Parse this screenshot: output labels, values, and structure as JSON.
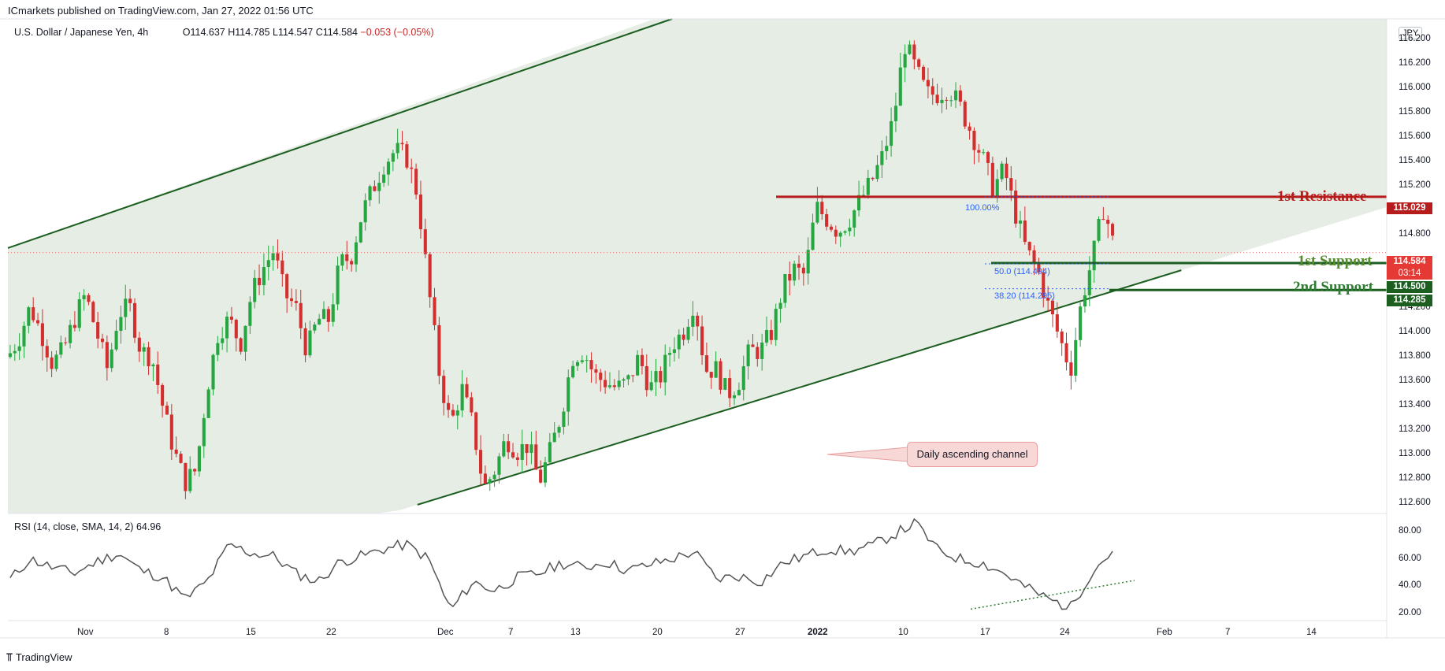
{
  "header": {
    "published_by": "ICmarkets published on TradingView.com, Jan 27, 2022 01:56 UTC"
  },
  "legend": {
    "symbol": "U.S. Dollar / Japanese Yen, 4h",
    "open": "O114.637",
    "high": "H114.785",
    "low": "L114.547",
    "close": "C114.584",
    "change": "−0.053 (−0.05%)"
  },
  "currency_badge": "JPY",
  "rsi_legend": {
    "label": "RSI (14, close, SMA, 14, 2)",
    "value": "64.96"
  },
  "price_axis_ticks": [
    "116.200",
    "116.000",
    "115.800",
    "115.600",
    "115.400",
    "115.200",
    "114.800",
    "114.200",
    "114.000",
    "113.800",
    "113.600",
    "113.400",
    "113.200",
    "113.000",
    "112.800",
    "112.600"
  ],
  "price_tags": {
    "resistance": "115.029",
    "last": "114.584",
    "countdown": "03:14",
    "support1": "114.500",
    "support2": "114.285"
  },
  "rsi_axis_ticks": [
    "80.00",
    "60.00",
    "40.00",
    "20.00"
  ],
  "time_axis_labels": [
    "Nov",
    "8",
    "15",
    "22",
    "Dec",
    "7",
    "13",
    "20",
    "27",
    "2022",
    "10",
    "17",
    "24",
    "Feb",
    "7",
    "14"
  ],
  "annotations": {
    "resistance_label": "1st Resistance",
    "support1_label": "1st Support",
    "support2_label": "2nd Support",
    "channel_callout": "Daily ascending channel",
    "fib_100": "100.00%",
    "fib_50": "50.0",
    "fib_50_val": "(114.494)",
    "fib_382": "38.20",
    "fib_382_val": "(114.295)"
  },
  "footer": {
    "brand": "TradingView"
  },
  "colors": {
    "up": "#26a641",
    "down": "#d32f2f",
    "channel_fill": "#e6ede4",
    "channel_line": "#1b5e20",
    "resistance": "#b71c1c",
    "support": "#1b5e20",
    "rsi_line": "#555555"
  },
  "chart_data": {
    "type": "candlestick",
    "symbol": "USDJPY",
    "interval": "4h",
    "ylim": [
      112.5,
      116.45
    ],
    "rsi_ylim": [
      15,
      88
    ],
    "key_levels": {
      "resistance_1": 115.029,
      "support_1": 114.5,
      "support_2": 114.285
    },
    "channel": {
      "upper": [
        {
          "x": 0.0,
          "y": 114.62
        },
        {
          "x": 0.6,
          "y": 116.5
        }
      ],
      "lower": [
        {
          "x": 0.37,
          "y": 112.57
        },
        {
          "x": 1.0,
          "y": 114.28
        }
      ]
    },
    "price_path": [
      [
        0.0,
        113.75
      ],
      [
        0.01,
        113.9
      ],
      [
        0.02,
        114.15
      ],
      [
        0.03,
        113.95
      ],
      [
        0.04,
        113.7
      ],
      [
        0.05,
        113.8
      ],
      [
        0.06,
        114.05
      ],
      [
        0.07,
        114.25
      ],
      [
        0.08,
        113.95
      ],
      [
        0.09,
        113.65
      ],
      [
        0.1,
        114.1
      ],
      [
        0.11,
        114.15
      ],
      [
        0.12,
        113.8
      ],
      [
        0.13,
        113.75
      ],
      [
        0.14,
        113.35
      ],
      [
        0.15,
        113.0
      ],
      [
        0.16,
        112.75
      ],
      [
        0.17,
        112.85
      ],
      [
        0.18,
        113.5
      ],
      [
        0.19,
        113.95
      ],
      [
        0.2,
        114.05
      ],
      [
        0.21,
        113.85
      ],
      [
        0.22,
        114.25
      ],
      [
        0.23,
        114.45
      ],
      [
        0.24,
        114.6
      ],
      [
        0.25,
        114.25
      ],
      [
        0.26,
        114.15
      ],
      [
        0.27,
        113.8
      ],
      [
        0.28,
        114.05
      ],
      [
        0.29,
        114.05
      ],
      [
        0.3,
        114.5
      ],
      [
        0.31,
        114.55
      ],
      [
        0.32,
        114.9
      ],
      [
        0.33,
        115.1
      ],
      [
        0.34,
        115.3
      ],
      [
        0.35,
        115.4
      ],
      [
        0.36,
        115.35
      ],
      [
        0.37,
        115.05
      ],
      [
        0.38,
        114.3
      ],
      [
        0.39,
        113.6
      ],
      [
        0.4,
        113.2
      ],
      [
        0.41,
        113.5
      ],
      [
        0.42,
        113.2
      ],
      [
        0.43,
        112.7
      ],
      [
        0.44,
        112.85
      ],
      [
        0.45,
        113.1
      ],
      [
        0.46,
        113.0
      ],
      [
        0.47,
        113.05
      ],
      [
        0.48,
        112.75
      ],
      [
        0.49,
        113.0
      ],
      [
        0.5,
        113.3
      ],
      [
        0.51,
        113.75
      ],
      [
        0.52,
        113.8
      ],
      [
        0.53,
        113.6
      ],
      [
        0.54,
        113.55
      ],
      [
        0.55,
        113.5
      ],
      [
        0.56,
        113.55
      ],
      [
        0.57,
        113.75
      ],
      [
        0.58,
        113.5
      ],
      [
        0.59,
        113.6
      ],
      [
        0.6,
        113.85
      ],
      [
        0.61,
        113.95
      ],
      [
        0.62,
        114.2
      ],
      [
        0.63,
        113.65
      ],
      [
        0.64,
        113.65
      ],
      [
        0.65,
        113.45
      ],
      [
        0.66,
        113.55
      ],
      [
        0.67,
        113.8
      ],
      [
        0.68,
        113.8
      ],
      [
        0.69,
        113.95
      ],
      [
        0.7,
        114.3
      ],
      [
        0.71,
        114.45
      ],
      [
        0.72,
        114.4
      ],
      [
        0.73,
        114.95
      ],
      [
        0.74,
        114.85
      ],
      [
        0.75,
        114.75
      ],
      [
        0.76,
        114.85
      ],
      [
        0.77,
        115.0
      ],
      [
        0.78,
        115.15
      ],
      [
        0.79,
        115.35
      ],
      [
        0.8,
        115.65
      ],
      [
        0.81,
        116.25
      ],
      [
        0.82,
        116.05
      ],
      [
        0.83,
        115.85
      ],
      [
        0.84,
        115.85
      ],
      [
        0.85,
        115.9
      ],
      [
        0.86,
        115.75
      ],
      [
        0.87,
        115.55
      ],
      [
        0.88,
        115.35
      ],
      [
        0.89,
        115.1
      ],
      [
        0.9,
        115.25
      ],
      [
        0.91,
        114.9
      ],
      [
        0.92,
        114.6
      ],
      [
        0.93,
        114.45
      ],
      [
        0.94,
        114.15
      ],
      [
        0.95,
        113.9
      ],
      [
        0.96,
        113.65
      ],
      [
        0.97,
        114.2
      ],
      [
        0.98,
        114.55
      ],
      [
        0.99,
        114.95
      ],
      [
        1.0,
        114.6
      ]
    ],
    "rsi_path": [
      [
        0.0,
        42
      ],
      [
        0.02,
        58
      ],
      [
        0.04,
        52
      ],
      [
        0.06,
        48
      ],
      [
        0.08,
        56
      ],
      [
        0.1,
        62
      ],
      [
        0.12,
        50
      ],
      [
        0.14,
        45
      ],
      [
        0.16,
        30
      ],
      [
        0.18,
        42
      ],
      [
        0.2,
        68
      ],
      [
        0.22,
        62
      ],
      [
        0.24,
        60
      ],
      [
        0.26,
        48
      ],
      [
        0.28,
        42
      ],
      [
        0.3,
        56
      ],
      [
        0.32,
        60
      ],
      [
        0.34,
        65
      ],
      [
        0.36,
        68
      ],
      [
        0.38,
        58
      ],
      [
        0.4,
        22
      ],
      [
        0.42,
        42
      ],
      [
        0.44,
        36
      ],
      [
        0.46,
        45
      ],
      [
        0.48,
        48
      ],
      [
        0.5,
        55
      ],
      [
        0.52,
        52
      ],
      [
        0.54,
        56
      ],
      [
        0.56,
        50
      ],
      [
        0.58,
        54
      ],
      [
        0.6,
        58
      ],
      [
        0.62,
        63
      ],
      [
        0.64,
        44
      ],
      [
        0.66,
        46
      ],
      [
        0.68,
        42
      ],
      [
        0.7,
        55
      ],
      [
        0.72,
        60
      ],
      [
        0.74,
        65
      ],
      [
        0.76,
        63
      ],
      [
        0.78,
        67
      ],
      [
        0.8,
        75
      ],
      [
        0.82,
        83
      ],
      [
        0.84,
        64
      ],
      [
        0.86,
        58
      ],
      [
        0.88,
        55
      ],
      [
        0.9,
        48
      ],
      [
        0.92,
        38
      ],
      [
        0.94,
        30
      ],
      [
        0.96,
        24
      ],
      [
        0.98,
        50
      ],
      [
        1.0,
        65
      ]
    ]
  }
}
